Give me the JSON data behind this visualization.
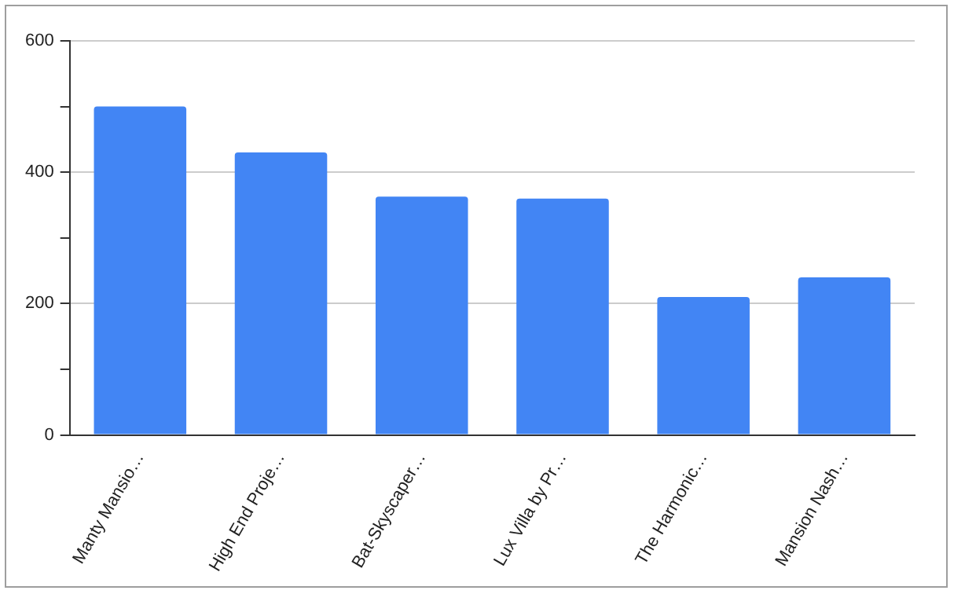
{
  "chart_data": {
    "type": "bar",
    "categories": [
      "Manty Mansio…",
      "High End Proje…",
      "Bat-Skyscaper…",
      "Lux Villa by Pr…",
      "The Harmonic…",
      "Mansion Nash…"
    ],
    "values": [
      500,
      430,
      363,
      360,
      210,
      240
    ],
    "color": "#4285f4",
    "ylim": [
      0,
      600
    ],
    "yticks": [
      0,
      {
        "value": 100,
        "label": null
      },
      200,
      {
        "value": 300,
        "label": null
      },
      400,
      {
        "value": 500,
        "label": null
      },
      600
    ],
    "grid": "y",
    "legend": false
  }
}
